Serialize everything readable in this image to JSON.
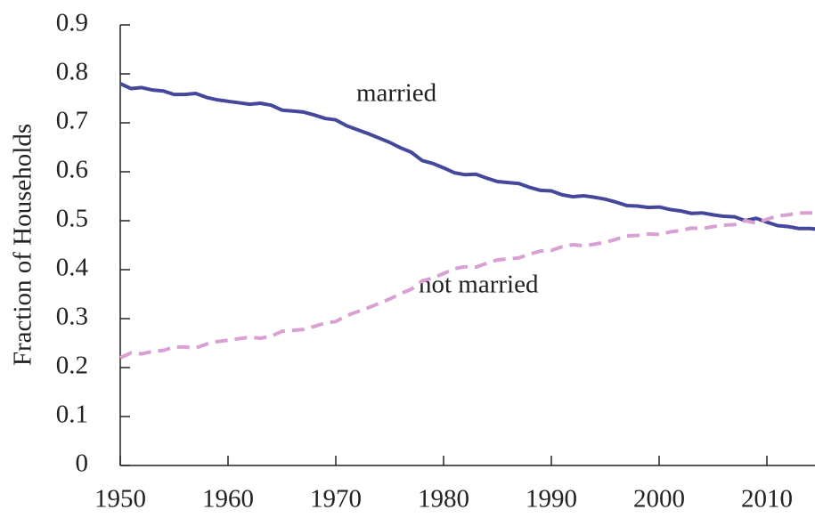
{
  "chart_data": {
    "type": "line",
    "y_label": "Fraction of Households",
    "x": [
      1950,
      1951,
      1952,
      1953,
      1954,
      1955,
      1956,
      1957,
      1958,
      1959,
      1960,
      1961,
      1962,
      1963,
      1964,
      1965,
      1966,
      1967,
      1968,
      1969,
      1970,
      1971,
      1972,
      1973,
      1974,
      1975,
      1976,
      1977,
      1978,
      1979,
      1980,
      1981,
      1982,
      1983,
      1984,
      1985,
      1986,
      1987,
      1988,
      1989,
      1990,
      1991,
      1992,
      1993,
      1994,
      1995,
      1996,
      1997,
      1998,
      1999,
      2000,
      2001,
      2002,
      2003,
      2004,
      2005,
      2006,
      2007,
      2008,
      2009,
      2010,
      2011,
      2012,
      2013,
      2014,
      2015
    ],
    "series": [
      {
        "name": "married",
        "color": "#45489a",
        "dashed": false,
        "values": [
          0.78,
          0.77,
          0.772,
          0.767,
          0.765,
          0.758,
          0.758,
          0.76,
          0.752,
          0.747,
          0.744,
          0.741,
          0.738,
          0.74,
          0.736,
          0.726,
          0.724,
          0.722,
          0.716,
          0.709,
          0.706,
          0.694,
          0.686,
          0.678,
          0.669,
          0.66,
          0.649,
          0.64,
          0.623,
          0.617,
          0.608,
          0.598,
          0.594,
          0.595,
          0.587,
          0.58,
          0.578,
          0.576,
          0.568,
          0.562,
          0.561,
          0.553,
          0.549,
          0.551,
          0.548,
          0.544,
          0.538,
          0.531,
          0.53,
          0.527,
          0.528,
          0.523,
          0.52,
          0.515,
          0.516,
          0.512,
          0.509,
          0.508,
          0.5,
          0.505,
          0.497,
          0.49,
          0.488,
          0.484,
          0.484,
          0.482
        ]
      },
      {
        "name": "not married",
        "color": "#d9a0d4",
        "dashed": true,
        "values": [
          0.22,
          0.23,
          0.228,
          0.233,
          0.235,
          0.242,
          0.242,
          0.24,
          0.248,
          0.253,
          0.256,
          0.259,
          0.262,
          0.26,
          0.264,
          0.274,
          0.276,
          0.278,
          0.284,
          0.291,
          0.294,
          0.306,
          0.314,
          0.322,
          0.331,
          0.34,
          0.351,
          0.36,
          0.377,
          0.383,
          0.392,
          0.402,
          0.406,
          0.405,
          0.413,
          0.42,
          0.422,
          0.424,
          0.432,
          0.438,
          0.439,
          0.447,
          0.451,
          0.449,
          0.452,
          0.456,
          0.462,
          0.469,
          0.47,
          0.473,
          0.472,
          0.477,
          0.48,
          0.485,
          0.484,
          0.488,
          0.491,
          0.492,
          0.5,
          0.495,
          0.503,
          0.51,
          0.512,
          0.516,
          0.516,
          0.518
        ]
      }
    ],
    "xlim": [
      1950,
      2015
    ],
    "xticks": [
      1950,
      1960,
      1970,
      1980,
      1990,
      2000,
      2010
    ],
    "ylim": [
      0,
      0.9
    ],
    "yticks": [
      0,
      0.1,
      0.2,
      0.3,
      0.4,
      0.5,
      0.6,
      0.7,
      0.8,
      0.9
    ],
    "grid": false
  }
}
